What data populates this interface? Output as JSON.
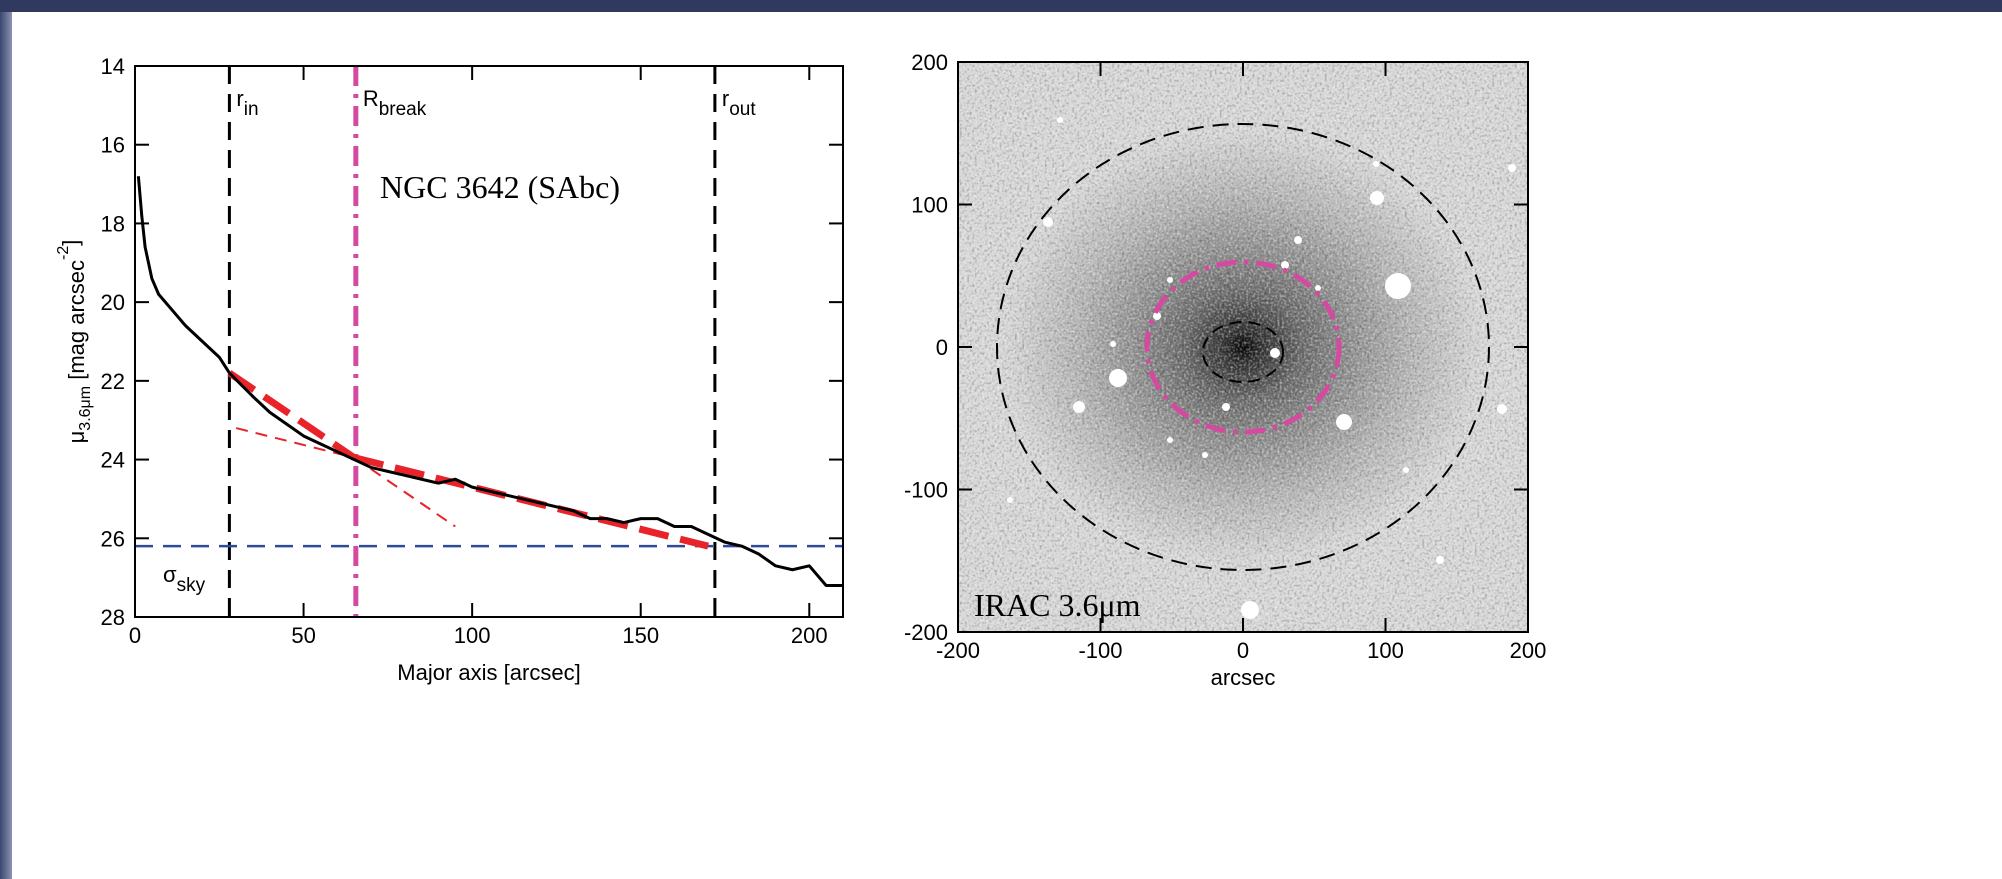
{
  "chart_data": [
    {
      "type": "line",
      "xlabel": "Major axis [arcsec]",
      "ylabel": [
        {
          "text": "μ"
        },
        {
          "sub": "3.6μm"
        },
        {
          "text": " [mag arcsec"
        },
        {
          "sup": "-2"
        },
        {
          "text": "]"
        }
      ],
      "annotation": "NGC 3642 (SAbc)",
      "xlim": [
        0,
        210
      ],
      "ylim": [
        28,
        14
      ],
      "xticks": [
        0,
        50,
        100,
        150,
        200
      ],
      "yticks": [
        14,
        16,
        18,
        20,
        22,
        24,
        26,
        28
      ],
      "profile": {
        "color": "#000000",
        "x": [
          1,
          2,
          3,
          5,
          7,
          10,
          15,
          20,
          25,
          28,
          35,
          40,
          45,
          50,
          55,
          60,
          65,
          70,
          75,
          80,
          85,
          90,
          95,
          100,
          105,
          110,
          115,
          120,
          125,
          130,
          135,
          140,
          145,
          150,
          155,
          160,
          165,
          170,
          175,
          180,
          185,
          190,
          195,
          200,
          205,
          210
        ],
        "values": [
          16.8,
          17.8,
          18.6,
          19.4,
          19.8,
          20.1,
          20.6,
          21.0,
          21.4,
          21.8,
          22.4,
          22.8,
          23.1,
          23.4,
          23.6,
          23.8,
          24.0,
          24.2,
          24.3,
          24.4,
          24.5,
          24.6,
          24.5,
          24.7,
          24.8,
          24.9,
          25.0,
          25.1,
          25.2,
          25.3,
          25.5,
          25.5,
          25.6,
          25.5,
          25.5,
          25.7,
          25.7,
          25.9,
          26.1,
          26.2,
          26.4,
          26.7,
          26.8,
          26.7,
          27.2,
          27.2
        ]
      },
      "fits": [
        {
          "color": "#e8242a",
          "line": "thick",
          "x": [
            28,
            65
          ],
          "values": [
            21.8,
            23.95
          ]
        },
        {
          "color": "#e8242a",
          "line": "thin",
          "x": [
            65,
            95
          ],
          "values": [
            23.95,
            25.7
          ]
        },
        {
          "color": "#e8242a",
          "line": "thin",
          "x": [
            30,
            65
          ],
          "values": [
            23.2,
            23.95
          ]
        },
        {
          "color": "#e8242a",
          "line": "thick",
          "x": [
            65,
            170
          ],
          "values": [
            23.95,
            26.2
          ]
        }
      ],
      "vlines": [
        {
          "value": 28,
          "label": "r",
          "sub": "in",
          "color": "#000000",
          "line": "dash"
        },
        {
          "value": 65.5,
          "label": "R",
          "sub": "break",
          "color": "#d54aa0",
          "line": "dashdot"
        },
        {
          "value": 172,
          "label": "r",
          "sub": "out",
          "color": "#000000",
          "line": "dash"
        }
      ],
      "hline": {
        "value": 26.2,
        "label": "σ",
        "sub": "sky",
        "color": "#2f4a9a"
      }
    },
    {
      "type": "image",
      "xlabel": "arcsec",
      "annotation": "IRAC 3.6μm",
      "xlim": [
        -200,
        200
      ],
      "ylim": [
        -200,
        200
      ],
      "xticks": [
        -200,
        -100,
        0,
        100,
        200
      ],
      "yticks": [
        -200,
        -100,
        0,
        100,
        200
      ]
    }
  ]
}
